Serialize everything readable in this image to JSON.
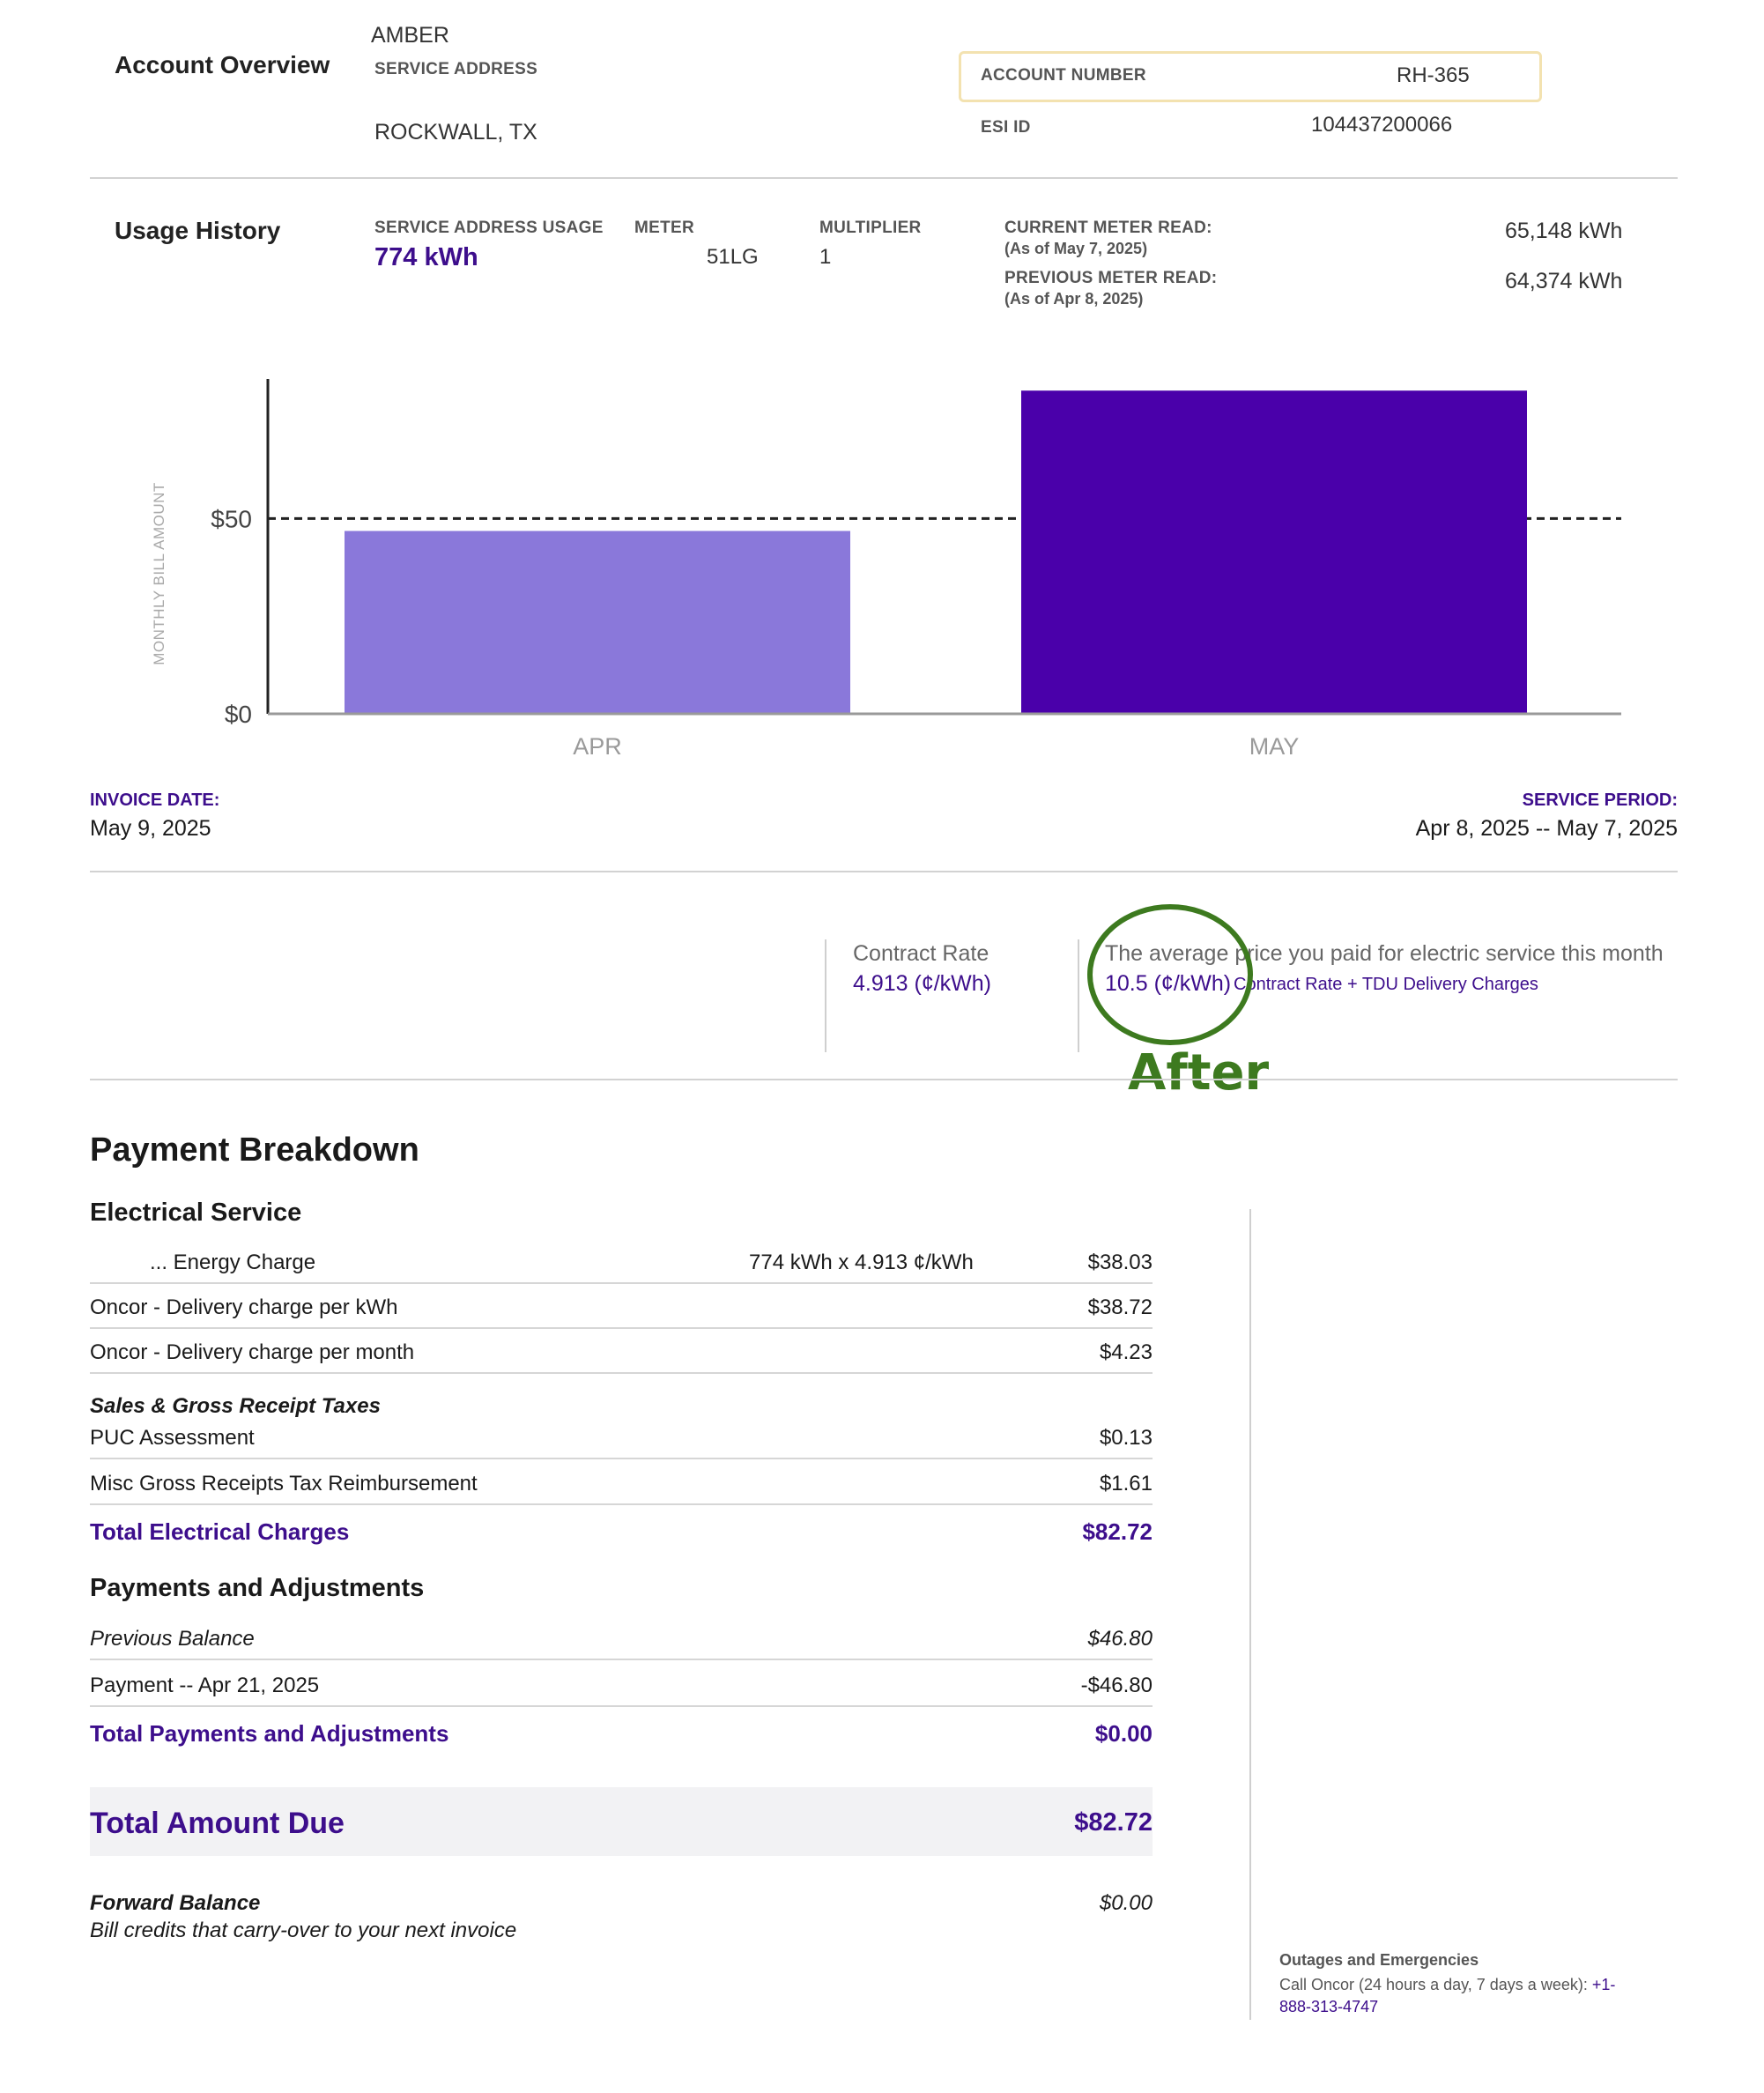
{
  "account": {
    "heading": "Account Overview",
    "name": "AMBER",
    "service_address_label": "SERVICE ADDRESS",
    "city": "ROCKWALL, TX",
    "account_number_label": "ACCOUNT NUMBER",
    "account_number": "RH-365",
    "esi_id_label": "ESI ID",
    "esi_id": "104437200066"
  },
  "usage": {
    "heading": "Usage History",
    "service_usage_label": "SERVICE ADDRESS USAGE",
    "service_usage": "774 kWh",
    "meter_label": "METER",
    "meter": "51LG",
    "multiplier_label": "MULTIPLIER",
    "multiplier": "1",
    "current_read_label": "CURRENT METER READ:",
    "current_read_date": "(As of May 7, 2025)",
    "current_read": "65,148 kWh",
    "previous_read_label": "PREVIOUS METER READ:",
    "previous_read_date": "(As of Apr 8, 2025)",
    "previous_read": "64,374 kWh"
  },
  "chart_data": {
    "type": "bar",
    "categories": [
      "APR",
      "MAY"
    ],
    "values": [
      46.8,
      82.72
    ],
    "ylabel": "MONTHLY BILL AMOUNT",
    "yticks": [
      0,
      50
    ],
    "ytick_labels": [
      "$0",
      "$50"
    ],
    "ylim": [
      0,
      83
    ],
    "reference_line": 50,
    "colors": [
      "#8a78da",
      "#4a00aa"
    ],
    "grid": false
  },
  "invoice": {
    "date_label": "INVOICE DATE:",
    "date": "May 9, 2025",
    "period_label": "SERVICE PERIOD:",
    "period": "Apr 8, 2025 -- May 7, 2025"
  },
  "rates": {
    "contract_label": "Contract Rate",
    "contract_value": "4.913 (¢/kWh)",
    "avg_label": "The average price you paid for electric service this month",
    "avg_value": "10.5 (¢/kWh)",
    "avg_note": "Contract Rate + TDU Delivery Charges",
    "annotation": "After"
  },
  "payment": {
    "heading": "Payment Breakdown",
    "electrical_heading": "Electrical Service",
    "energy_label": "... Energy Charge",
    "energy_calc": "774 kWh x 4.913 ¢/kWh",
    "energy_amount": "$38.03",
    "delivery_kwh_label": "Oncor - Delivery charge per kWh",
    "delivery_kwh_amount": "$38.72",
    "delivery_month_label": "Oncor - Delivery charge per month",
    "delivery_month_amount": "$4.23",
    "taxes_heading": "Sales & Gross Receipt Taxes",
    "puc_label": "PUC Assessment",
    "puc_amount": "$0.13",
    "misc_label": "Misc Gross Receipts Tax Reimbursement",
    "misc_amount": "$1.61",
    "total_elec_label": "Total Electrical Charges",
    "total_elec_amount": "$82.72",
    "adj_heading": "Payments and Adjustments",
    "prev_balance_label": "Previous Balance",
    "prev_balance_amount": "$46.80",
    "payment_label": "Payment -- Apr 21, 2025",
    "payment_amount": "-$46.80",
    "total_adj_label": "Total Payments and Adjustments",
    "total_adj_amount": "$0.00",
    "due_label": "Total Amount Due",
    "due_amount": "$82.72",
    "forward_label": "Forward Balance",
    "forward_note": "Bill credits that carry-over to your next invoice",
    "forward_amount": "$0.00"
  },
  "outages": {
    "heading": "Outages and Emergencies",
    "text": "Call Oncor (24 hours a day, 7 days a week):",
    "phone_a": "+1-",
    "phone_b": "888-313-4747"
  }
}
